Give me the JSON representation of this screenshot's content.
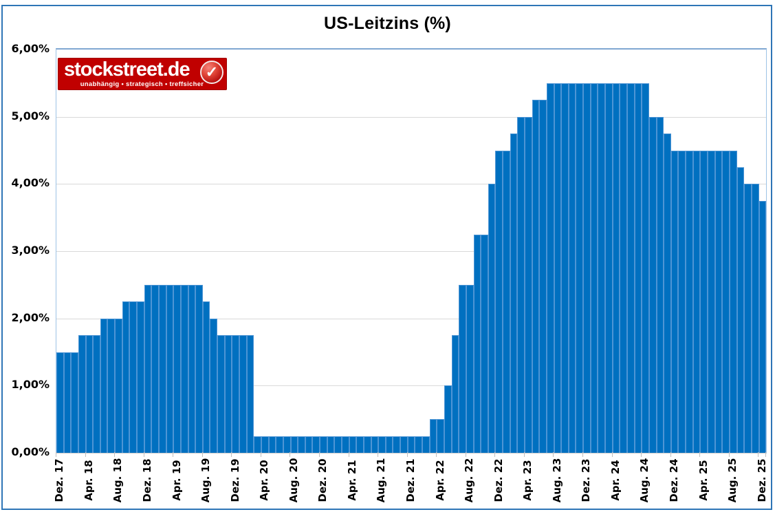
{
  "logo": {
    "brand": "stockstreet.de",
    "tagline": "unabhängig • strategisch • treffsicher",
    "background_color": "#C00000",
    "check_icon": "white-checkmark-in-glossy-red-circle"
  },
  "colors": {
    "bar": "#0070C0",
    "bar_separator": "#4E95D5",
    "gridline": "#D9D9D9",
    "plot_border": "#7FA7D1",
    "page_border": "#2E75B6"
  },
  "chart_data": {
    "type": "bar",
    "title": "US-Leitzins (%)",
    "xlabel": "",
    "ylabel": "",
    "unit": "%",
    "ylim": [
      0,
      6
    ],
    "grid": true,
    "legend": false,
    "frequency": "monthly",
    "x_start": "Dez. 17",
    "x_end": "Dez. 25",
    "y_ticks": [
      "6,00%",
      "5,00%",
      "4,00%",
      "3,00%",
      "2,00%",
      "1,00%",
      "0,00%"
    ],
    "x_tick_labels": [
      "Dez. 17",
      "Apr. 18",
      "Aug. 18",
      "Dez. 18",
      "Apr. 19",
      "Aug. 19",
      "Dez. 19",
      "Apr. 20",
      "Aug. 20",
      "Dez. 20",
      "Apr. 21",
      "Aug. 21",
      "Dez. 21",
      "Apr. 22",
      "Aug. 22",
      "Dez. 22",
      "Apr. 23",
      "Aug. 23",
      "Dez. 23",
      "Apr. 24",
      "Aug. 24",
      "Dez. 24",
      "Apr. 25",
      "Aug. 25",
      "Dez. 25"
    ],
    "x_tick_every": 4,
    "values": [
      1.5,
      1.5,
      1.5,
      1.75,
      1.75,
      1.75,
      2.0,
      2.0,
      2.0,
      2.25,
      2.25,
      2.25,
      2.5,
      2.5,
      2.5,
      2.5,
      2.5,
      2.5,
      2.5,
      2.5,
      2.25,
      2.0,
      1.75,
      1.75,
      1.75,
      1.75,
      1.75,
      0.25,
      0.25,
      0.25,
      0.25,
      0.25,
      0.25,
      0.25,
      0.25,
      0.25,
      0.25,
      0.25,
      0.25,
      0.25,
      0.25,
      0.25,
      0.25,
      0.25,
      0.25,
      0.25,
      0.25,
      0.25,
      0.25,
      0.25,
      0.25,
      0.5,
      0.5,
      1.0,
      1.75,
      2.5,
      2.5,
      3.25,
      3.25,
      4.0,
      4.5,
      4.5,
      4.75,
      5.0,
      5.0,
      5.25,
      5.25,
      5.5,
      5.5,
      5.5,
      5.5,
      5.5,
      5.5,
      5.5,
      5.5,
      5.5,
      5.5,
      5.5,
      5.5,
      5.5,
      5.5,
      5.0,
      5.0,
      4.75,
      4.5,
      4.5,
      4.5,
      4.5,
      4.5,
      4.5,
      4.5,
      4.5,
      4.5,
      4.25,
      4.0,
      4.0,
      3.75
    ]
  }
}
